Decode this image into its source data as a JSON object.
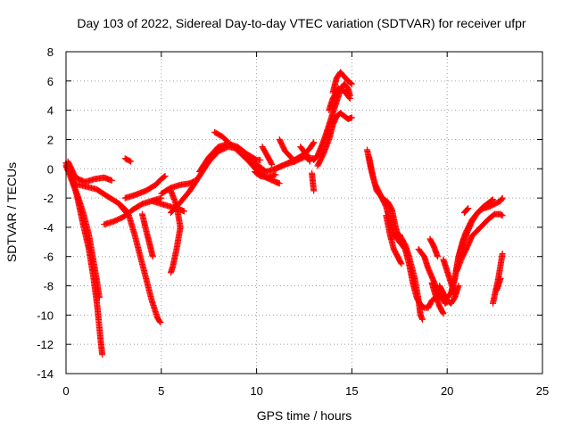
{
  "chart_data": {
    "type": "scatter",
    "title": "Day 103 of 2022, Sidereal Day-to-day VTEC variation (SDTVAR) for receiver ufpr",
    "xlabel": "GPS time / hours",
    "ylabel": "SDTVAR / TECUs",
    "xlim": [
      0,
      25
    ],
    "ylim": [
      -14,
      8
    ],
    "xticks": [
      "0",
      "5",
      "10",
      "15",
      "20",
      "25"
    ],
    "yticks": [
      "-14",
      "-12",
      "-10",
      "-8",
      "-6",
      "-4",
      "-2",
      "0",
      "2",
      "4",
      "6",
      "8"
    ],
    "grid": true,
    "color": "#ff0000",
    "marker": "plus",
    "series": [
      {
        "points": [
          [
            0.0,
            0.4
          ],
          [
            0.3,
            -0.5
          ],
          [
            0.6,
            -2.0
          ],
          [
            0.9,
            -3.8
          ],
          [
            1.2,
            -5.5
          ],
          [
            1.45,
            -7.5
          ],
          [
            1.65,
            -9.5
          ],
          [
            1.8,
            -11.5
          ],
          [
            1.9,
            -12.7
          ]
        ]
      },
      {
        "points": [
          [
            0.0,
            0.2
          ],
          [
            0.3,
            -0.8
          ],
          [
            0.6,
            -1.8
          ],
          [
            0.9,
            -3.0
          ],
          [
            1.2,
            -4.5
          ],
          [
            1.4,
            -6.0
          ],
          [
            1.6,
            -7.5
          ],
          [
            1.75,
            -8.8
          ]
        ]
      },
      {
        "points": [
          [
            0.1,
            0.5
          ],
          [
            0.5,
            -0.6
          ],
          [
            1.0,
            -0.9
          ],
          [
            1.5,
            -0.7
          ],
          [
            2.0,
            -0.6
          ],
          [
            2.4,
            -0.8
          ]
        ]
      },
      {
        "points": [
          [
            0.4,
            -1.0
          ],
          [
            1.0,
            -1.2
          ],
          [
            1.6,
            -1.4
          ],
          [
            2.2,
            -1.9
          ],
          [
            2.8,
            -2.4
          ],
          [
            3.2,
            -2.9
          ]
        ]
      },
      {
        "points": [
          [
            2.0,
            -3.8
          ],
          [
            2.5,
            -3.6
          ],
          [
            3.0,
            -3.3
          ],
          [
            3.5,
            -2.8
          ],
          [
            4.0,
            -2.4
          ],
          [
            4.5,
            -2.2
          ],
          [
            5.0,
            -2.0
          ]
        ]
      },
      {
        "points": [
          [
            3.1,
            0.7
          ],
          [
            3.4,
            0.5
          ]
        ]
      },
      {
        "points": [
          [
            2.9,
            -2.6
          ],
          [
            3.3,
            -3.2
          ],
          [
            3.6,
            -4.5
          ],
          [
            3.9,
            -6.0
          ],
          [
            4.2,
            -7.5
          ],
          [
            4.5,
            -9.0
          ],
          [
            4.8,
            -10.2
          ],
          [
            4.95,
            -10.5
          ]
        ]
      },
      {
        "points": [
          [
            3.1,
            -2.0
          ],
          [
            3.6,
            -1.8
          ],
          [
            4.2,
            -1.5
          ],
          [
            4.7,
            -1.1
          ],
          [
            5.0,
            -0.7
          ],
          [
            5.2,
            -0.5
          ]
        ]
      },
      {
        "points": [
          [
            4.0,
            -3.1
          ],
          [
            4.2,
            -4.2
          ],
          [
            4.4,
            -5.2
          ],
          [
            4.55,
            -6.0
          ]
        ]
      },
      {
        "points": [
          [
            4.5,
            -2.2
          ],
          [
            5.0,
            -2.4
          ],
          [
            5.5,
            -2.6
          ],
          [
            6.0,
            -2.8
          ],
          [
            6.2,
            -2.9
          ]
        ]
      },
      {
        "points": [
          [
            5.5,
            -1.5
          ],
          [
            5.8,
            -2.5
          ],
          [
            6.0,
            -4.0
          ],
          [
            5.8,
            -5.5
          ],
          [
            5.6,
            -6.7
          ],
          [
            5.5,
            -7.1
          ]
        ]
      },
      {
        "points": [
          [
            5.0,
            -1.7
          ],
          [
            5.5,
            -1.3
          ],
          [
            6.0,
            -1.1
          ],
          [
            6.5,
            -1.0
          ],
          [
            6.8,
            -0.8
          ]
        ]
      },
      {
        "points": [
          [
            5.5,
            -3.0
          ],
          [
            6.0,
            -2.3
          ],
          [
            6.5,
            -1.5
          ],
          [
            7.0,
            -0.5
          ],
          [
            7.5,
            0.5
          ],
          [
            8.0,
            1.2
          ],
          [
            8.5,
            1.5
          ],
          [
            9.0,
            1.4
          ],
          [
            9.5,
            0.8
          ],
          [
            10.0,
            0.3
          ],
          [
            10.5,
            -0.2
          ],
          [
            11.0,
            0.0
          ],
          [
            11.5,
            0.3
          ],
          [
            12.0,
            0.5
          ],
          [
            12.5,
            0.8
          ],
          [
            13.0,
            0.7
          ]
        ]
      },
      {
        "points": [
          [
            7.0,
            -0.2
          ],
          [
            7.5,
            0.8
          ],
          [
            8.0,
            1.5
          ],
          [
            8.5,
            1.7
          ],
          [
            9.0,
            1.5
          ],
          [
            9.5,
            1.0
          ],
          [
            10.0,
            0.6
          ],
          [
            10.2,
            0.6
          ]
        ]
      },
      {
        "points": [
          [
            7.8,
            2.5
          ],
          [
            8.2,
            2.2
          ],
          [
            8.7,
            1.6
          ],
          [
            9.2,
            1.0
          ],
          [
            9.6,
            0.5
          ],
          [
            10.0,
            -0.1
          ],
          [
            10.5,
            -0.6
          ],
          [
            11.0,
            -0.9
          ],
          [
            11.2,
            -1.0
          ]
        ]
      },
      {
        "points": [
          [
            9.9,
            -0.2
          ],
          [
            10.2,
            -0.5
          ],
          [
            10.6,
            -0.6
          ],
          [
            11.0,
            -0.4
          ]
        ]
      },
      {
        "points": [
          [
            10.3,
            1.5
          ],
          [
            10.6,
            0.8
          ],
          [
            10.8,
            0.3
          ]
        ]
      },
      {
        "points": [
          [
            11.2,
            2.0
          ],
          [
            11.5,
            1.2
          ],
          [
            11.8,
            0.8
          ],
          [
            12.0,
            0.5
          ]
        ]
      },
      {
        "points": [
          [
            11.0,
            0.0
          ],
          [
            11.5,
            0.3
          ],
          [
            12.0,
            0.6
          ],
          [
            12.5,
            1.0
          ],
          [
            12.8,
            1.4
          ],
          [
            13.0,
            1.8
          ]
        ]
      },
      {
        "points": [
          [
            12.3,
            1.5
          ],
          [
            12.6,
            1.0
          ],
          [
            12.8,
            0.5
          ]
        ]
      },
      {
        "points": [
          [
            12.9,
            -0.3
          ],
          [
            12.95,
            -0.9
          ],
          [
            13.0,
            -1.5
          ]
        ]
      },
      {
        "points": [
          [
            13.0,
            0.6
          ],
          [
            13.2,
            0.9
          ],
          [
            13.4,
            1.5
          ],
          [
            13.6,
            2.2
          ],
          [
            13.8,
            3.0
          ],
          [
            14.0,
            3.8
          ],
          [
            14.2,
            4.6
          ],
          [
            14.4,
            5.4
          ],
          [
            14.6,
            5.8
          ],
          [
            14.8,
            5.5
          ],
          [
            14.9,
            5.0
          ]
        ]
      },
      {
        "points": [
          [
            13.2,
            0.2
          ],
          [
            13.5,
            1.0
          ],
          [
            13.8,
            2.0
          ],
          [
            14.0,
            3.0
          ],
          [
            14.2,
            3.6
          ],
          [
            14.4,
            3.8
          ],
          [
            14.6,
            3.6
          ],
          [
            14.8,
            3.4
          ],
          [
            15.0,
            3.5
          ]
        ]
      },
      {
        "points": [
          [
            14.0,
            5.2
          ],
          [
            14.2,
            6.2
          ],
          [
            14.4,
            6.6
          ],
          [
            14.6,
            6.3
          ],
          [
            14.8,
            6.0
          ],
          [
            15.0,
            5.8
          ]
        ]
      },
      {
        "points": [
          [
            13.8,
            4.0
          ],
          [
            14.0,
            4.8
          ],
          [
            14.3,
            5.5
          ],
          [
            14.6,
            5.3
          ],
          [
            14.9,
            4.8
          ]
        ]
      },
      {
        "points": [
          [
            15.8,
            1.3
          ],
          [
            16.0,
            0.0
          ],
          [
            16.2,
            -1.0
          ],
          [
            16.5,
            -1.8
          ],
          [
            16.8,
            -2.6
          ],
          [
            17.0,
            -3.6
          ],
          [
            17.2,
            -4.5
          ],
          [
            17.5,
            -5.0
          ],
          [
            17.8,
            -5.5
          ],
          [
            18.0,
            -6.5
          ],
          [
            18.2,
            -7.8
          ],
          [
            18.4,
            -8.8
          ],
          [
            18.6,
            -9.3
          ],
          [
            18.8,
            -9.5
          ],
          [
            19.0,
            -9.5
          ],
          [
            19.2,
            -9.0
          ],
          [
            19.5,
            -8.7
          ],
          [
            19.8,
            -8.6
          ],
          [
            20.0,
            -8.8
          ],
          [
            20.2,
            -8.5
          ],
          [
            20.4,
            -7.5
          ],
          [
            20.6,
            -6.0
          ],
          [
            20.8,
            -5.0
          ],
          [
            21.0,
            -4.3
          ],
          [
            21.3,
            -3.5
          ],
          [
            21.6,
            -3.0
          ],
          [
            21.9,
            -2.6
          ],
          [
            22.2,
            -2.3
          ],
          [
            22.4,
            -2.1
          ]
        ]
      },
      {
        "points": [
          [
            15.9,
            0.8
          ],
          [
            16.1,
            -0.5
          ],
          [
            16.3,
            -1.5
          ],
          [
            16.6,
            -2.0
          ],
          [
            16.9,
            -2.3
          ],
          [
            17.1,
            -2.8
          ],
          [
            17.3,
            -4.0
          ],
          [
            17.5,
            -5.0
          ]
        ]
      },
      {
        "points": [
          [
            16.8,
            -3.2
          ],
          [
            17.0,
            -4.5
          ],
          [
            17.2,
            -5.5
          ],
          [
            17.4,
            -6.0
          ],
          [
            17.6,
            -6.5
          ]
        ]
      },
      {
        "points": [
          [
            17.5,
            -4.5
          ],
          [
            17.8,
            -5.2
          ],
          [
            18.0,
            -6.0
          ],
          [
            18.3,
            -7.5
          ],
          [
            18.5,
            -9.0
          ],
          [
            18.6,
            -10.0
          ],
          [
            18.7,
            -10.3
          ]
        ]
      },
      {
        "points": [
          [
            18.5,
            -5.5
          ],
          [
            18.8,
            -6.0
          ],
          [
            19.0,
            -6.8
          ],
          [
            19.3,
            -7.7
          ],
          [
            19.6,
            -8.6
          ],
          [
            19.9,
            -9.2
          ],
          [
            20.1,
            -9.0
          ]
        ]
      },
      {
        "points": [
          [
            19.1,
            -4.8
          ],
          [
            19.3,
            -5.3
          ],
          [
            19.5,
            -6.0
          ]
        ]
      },
      {
        "points": [
          [
            19.2,
            -7.8
          ],
          [
            19.4,
            -8.7
          ],
          [
            19.6,
            -9.4
          ],
          [
            19.8,
            -9.9
          ]
        ]
      },
      {
        "points": [
          [
            19.8,
            -6.2
          ],
          [
            20.0,
            -7.0
          ],
          [
            20.2,
            -7.8
          ],
          [
            20.4,
            -8.5
          ]
        ]
      },
      {
        "points": [
          [
            19.6,
            -8.0
          ],
          [
            19.8,
            -8.5
          ],
          [
            20.0,
            -9.0
          ],
          [
            20.2,
            -9.2
          ],
          [
            20.4,
            -8.8
          ],
          [
            20.6,
            -8.0
          ]
        ]
      },
      {
        "points": [
          [
            20.2,
            -8.6
          ],
          [
            20.4,
            -7.5
          ],
          [
            20.6,
            -6.0
          ],
          [
            20.8,
            -5.2
          ],
          [
            21.0,
            -4.5
          ],
          [
            21.3,
            -3.6
          ],
          [
            21.6,
            -3.0
          ],
          [
            21.9,
            -2.7
          ],
          [
            22.2,
            -2.6
          ],
          [
            22.5,
            -2.4
          ],
          [
            22.8,
            -2.2
          ],
          [
            22.9,
            -2.0
          ]
        ]
      },
      {
        "points": [
          [
            20.5,
            -7.0
          ],
          [
            20.8,
            -6.0
          ],
          [
            21.0,
            -5.5
          ],
          [
            21.3,
            -4.6
          ],
          [
            21.6,
            -4.2
          ],
          [
            21.9,
            -3.8
          ],
          [
            22.2,
            -3.4
          ],
          [
            22.5,
            -3.1
          ],
          [
            22.8,
            -3.1
          ],
          [
            22.9,
            -3.2
          ]
        ]
      },
      {
        "points": [
          [
            20.9,
            -3.0
          ],
          [
            21.1,
            -2.7
          ]
        ]
      },
      {
        "points": [
          [
            22.4,
            -9.2
          ],
          [
            22.5,
            -8.6
          ],
          [
            22.6,
            -8.0
          ],
          [
            22.7,
            -7.4
          ],
          [
            22.8,
            -6.6
          ],
          [
            22.9,
            -5.8
          ]
        ]
      },
      {
        "points": [
          [
            22.6,
            -8.3
          ],
          [
            22.8,
            -7.5
          ]
        ]
      }
    ]
  }
}
